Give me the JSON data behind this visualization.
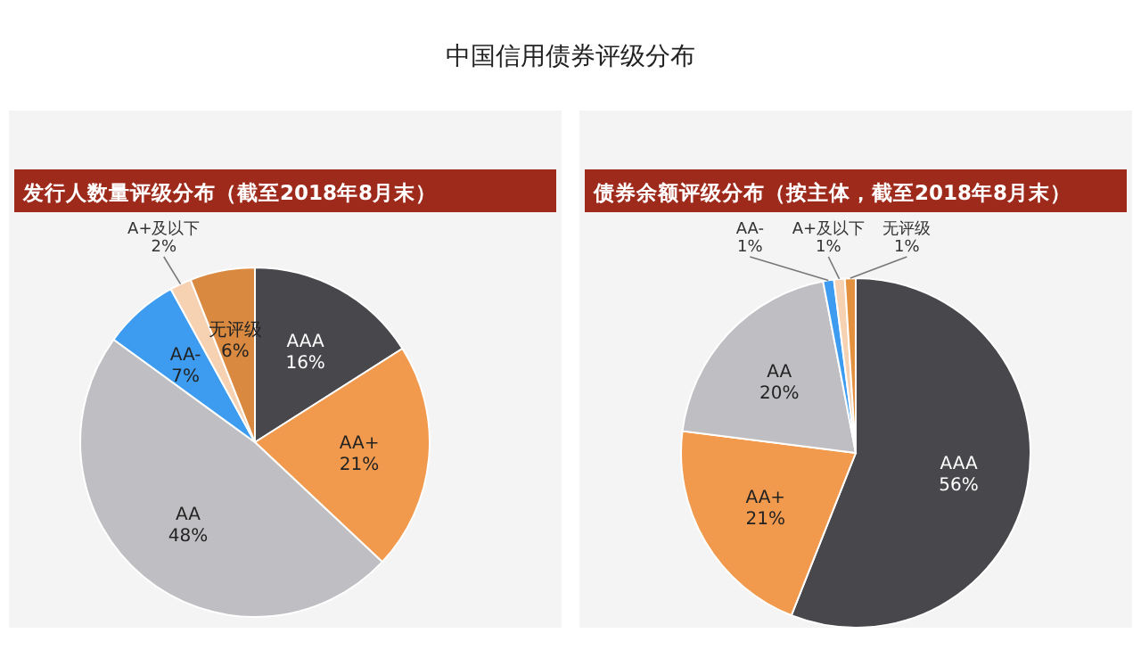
{
  "chart_data": [
    {
      "type": "pie",
      "title": "中国信用债券评级分布",
      "subtitle": "发行人数量评级分布（截至2018年8月末）",
      "categories": [
        "AAA",
        "AA+",
        "AA",
        "AA-",
        "A+及以下",
        "无评级"
      ],
      "values": [
        16,
        21,
        48,
        7,
        2,
        6
      ],
      "colors": [
        "#48484c",
        "#f19a4e",
        "#bfbfc3",
        "#3d9cf0",
        "#f6d2b3",
        "#d98a40"
      ],
      "value_labels": [
        "16%",
        "21%",
        "48%",
        "7%",
        "2%",
        "6%"
      ]
    },
    {
      "type": "pie",
      "subtitle": "债券余额评级分布（按主体，截至2018年8月末）",
      "categories": [
        "AAA",
        "AA+",
        "AA",
        "AA-",
        "A+及以下",
        "无评级"
      ],
      "values": [
        56,
        21,
        20,
        1,
        1,
        1
      ],
      "colors": [
        "#48484c",
        "#f19a4e",
        "#bfbfc3",
        "#3d9cf0",
        "#f6d2b3",
        "#e3913f"
      ],
      "value_labels": [
        "56%",
        "21%",
        "20%",
        "1%",
        "1%",
        "1%"
      ]
    }
  ]
}
